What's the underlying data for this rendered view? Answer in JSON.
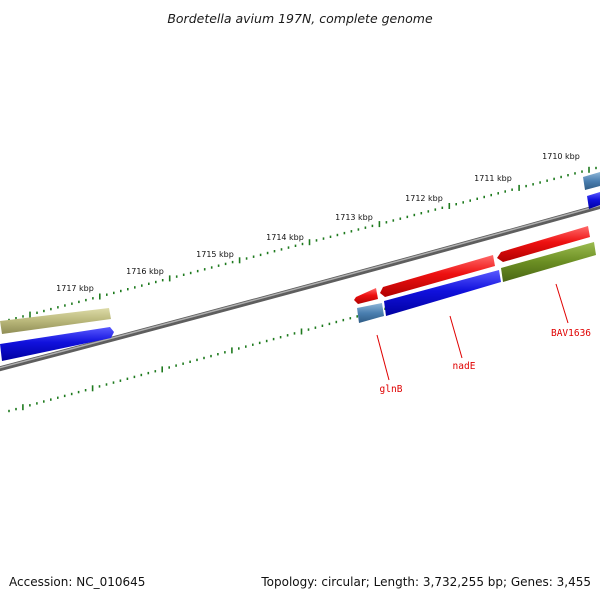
{
  "title": "Bordetella avium 197N, complete genome",
  "footer": {
    "accession": "Accession: NC_010645",
    "summary": "Topology: circular; Length: 3,732,255 bp; Genes: 3,455"
  },
  "scale_labels": [
    "1717 kbp",
    "1716 kbp",
    "1715 kbp",
    "1714 kbp",
    "1713 kbp",
    "1712 kbp",
    "1711 kbp",
    "1710 kbp"
  ],
  "gene_labels": [
    "glnB",
    "nadE",
    "BAV1636"
  ],
  "colors": {
    "backbone": "#7a7a7a",
    "ticks": "#1e7a1e",
    "forward_red": "#ee1111",
    "blue": "#1111dd",
    "steel_blue": "#4a7fb0",
    "olive": "#6b8e23",
    "khaki": "#b9b77a",
    "label": "#e00000"
  }
}
